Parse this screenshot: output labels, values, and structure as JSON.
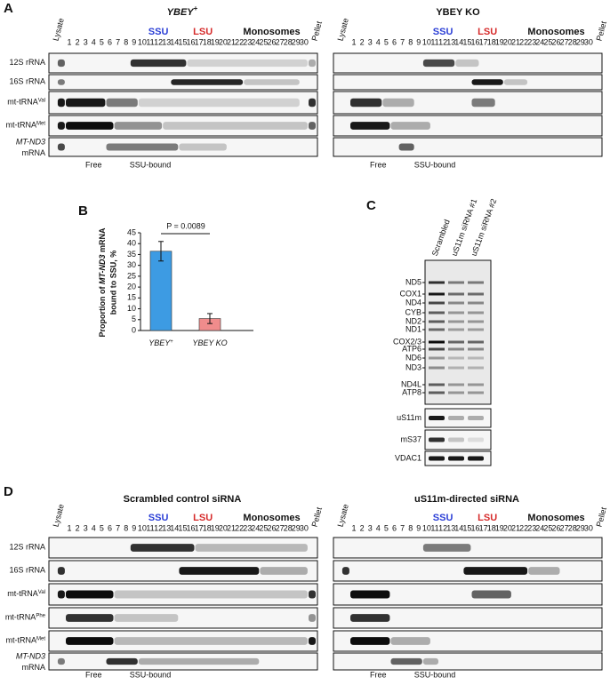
{
  "fractions": {
    "lysate": "Lysate",
    "numbers": [
      1,
      2,
      3,
      4,
      5,
      6,
      7,
      8,
      9,
      10,
      11,
      12,
      13,
      14,
      15,
      16,
      17,
      18,
      19,
      20,
      21,
      22,
      23,
      24,
      25,
      26,
      27,
      28,
      29,
      30
    ],
    "pellet": "Pellet",
    "ssu": "SSU",
    "lsu": "LSU",
    "monosomes": "Monosomes",
    "free": "Free",
    "ssu_bound": "SSU-bound"
  },
  "panel_a": {
    "label": "A",
    "left_title": {
      "text": "YBEY",
      "sup": "+"
    },
    "right_title": "YBEY KO",
    "rows": [
      {
        "text": "12S rRNA"
      },
      {
        "text": "16S rRNA"
      },
      {
        "text": "mt-tRNA",
        "sup": "Val"
      },
      {
        "text": "mt-tRNA",
        "sup": "Met"
      },
      {
        "text": "MT-ND3",
        "line2": "mRNA"
      }
    ]
  },
  "chart_data": {
    "type": "bar",
    "label": "B",
    "categories": [
      {
        "text": "YBEY",
        "sup": "+"
      },
      {
        "text": "YBEY KO"
      }
    ],
    "values": [
      36.5,
      5.5
    ],
    "errors": [
      4.5,
      2.3
    ],
    "colors": [
      "#3d9be3",
      "#f08c8c"
    ],
    "ylabel": {
      "line1": [
        "Proportion of ",
        "MT-ND3",
        " mRNA"
      ],
      "line2": "bound to SSU, %"
    },
    "annotation": "P = 0.0089",
    "ylim": [
      0,
      45
    ],
    "yticks": [
      0,
      5,
      10,
      15,
      20,
      25,
      30,
      35,
      40,
      45
    ]
  },
  "panel_c": {
    "label": "C",
    "lanes": [
      "Scrambled",
      "uS11m siRNA #1",
      "uS11m siRNA #2"
    ],
    "bands": [
      "ND5",
      "COX1",
      "ND4",
      "CYB",
      "ND2",
      "ND1",
      "COX2/3",
      "ATP6",
      "ND6",
      "ND3",
      "ND4L",
      "ATP8"
    ],
    "blots": [
      "uS11m",
      "mS37",
      "VDAC1"
    ]
  },
  "panel_d": {
    "label": "D",
    "left_title": "Scrambled control siRNA",
    "right_title": "uS11m-directed siRNA",
    "rows": [
      {
        "text": "12S rRNA"
      },
      {
        "text": "16S rRNA"
      },
      {
        "text": "mt-tRNA",
        "sup": "Val"
      },
      {
        "text": "mt-tRNA",
        "sup": "Phe"
      },
      {
        "text": "mt-tRNA",
        "sup": "Met"
      },
      {
        "text": "MT-ND3",
        "line2": "mRNA"
      }
    ]
  }
}
